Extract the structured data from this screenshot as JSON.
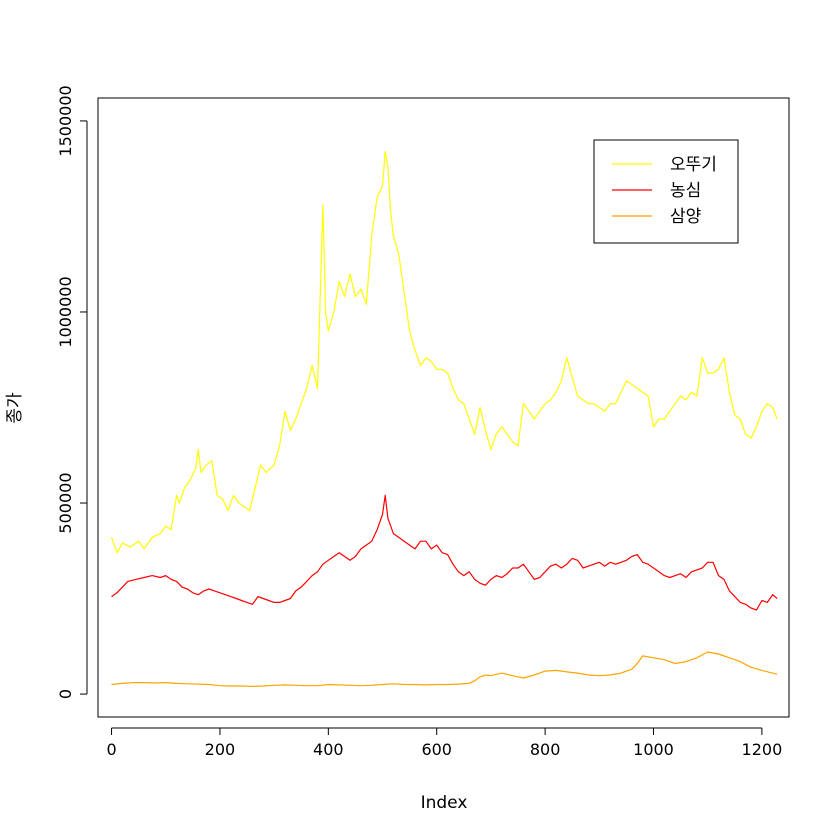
{
  "chart_data": {
    "type": "line",
    "title": "",
    "xlabel": "Index",
    "ylabel": "종가",
    "xlim": [
      -25,
      1250
    ],
    "ylim": [
      -60000,
      1560000
    ],
    "x_ticks": [
      0,
      200,
      400,
      600,
      800,
      1000,
      1200
    ],
    "x_tick_labels": [
      "0",
      "200",
      "400",
      "600",
      "800",
      "1000",
      "1200"
    ],
    "y_ticks": [
      0,
      500000,
      1000000,
      1500000
    ],
    "y_tick_labels": [
      "0",
      "500000",
      "1000000",
      "1500000"
    ],
    "grid": false,
    "legend_position": "top-right",
    "series": [
      {
        "name": "오뚜기",
        "color": "#ffff00",
        "x": [
          0,
          10,
          20,
          35,
          50,
          60,
          75,
          90,
          100,
          110,
          120,
          125,
          135,
          145,
          155,
          160,
          165,
          175,
          185,
          195,
          205,
          215,
          225,
          235,
          245,
          255,
          265,
          275,
          285,
          300,
          310,
          320,
          330,
          340,
          350,
          360,
          370,
          380,
          390,
          395,
          400,
          410,
          420,
          430,
          440,
          450,
          460,
          470,
          480,
          490,
          500,
          505,
          510,
          515,
          520,
          530,
          540,
          550,
          560,
          570,
          580,
          590,
          600,
          610,
          620,
          630,
          640,
          650,
          660,
          670,
          680,
          690,
          700,
          710,
          720,
          730,
          740,
          750,
          760,
          770,
          780,
          790,
          800,
          810,
          820,
          830,
          840,
          850,
          860,
          870,
          880,
          890,
          900,
          910,
          920,
          930,
          940,
          950,
          960,
          970,
          980,
          990,
          1000,
          1010,
          1020,
          1030,
          1040,
          1050,
          1060,
          1070,
          1080,
          1090,
          1100,
          1110,
          1120,
          1130,
          1140,
          1150,
          1160,
          1170,
          1180,
          1190,
          1200,
          1210,
          1220,
          1228
        ],
        "values": [
          410000,
          370000,
          395000,
          385000,
          400000,
          380000,
          410000,
          420000,
          440000,
          430000,
          520000,
          500000,
          540000,
          560000,
          590000,
          640000,
          580000,
          600000,
          610000,
          520000,
          510000,
          480000,
          520000,
          500000,
          490000,
          480000,
          540000,
          600000,
          580000,
          600000,
          650000,
          740000,
          690000,
          720000,
          760000,
          800000,
          860000,
          800000,
          1280000,
          1000000,
          950000,
          1000000,
          1080000,
          1040000,
          1100000,
          1040000,
          1060000,
          1020000,
          1200000,
          1300000,
          1330000,
          1420000,
          1380000,
          1260000,
          1200000,
          1150000,
          1050000,
          950000,
          900000,
          860000,
          880000,
          870000,
          850000,
          850000,
          840000,
          800000,
          770000,
          760000,
          720000,
          680000,
          750000,
          690000,
          640000,
          680000,
          700000,
          680000,
          660000,
          650000,
          760000,
          740000,
          720000,
          740000,
          760000,
          770000,
          790000,
          820000,
          880000,
          830000,
          780000,
          770000,
          760000,
          760000,
          750000,
          740000,
          760000,
          760000,
          790000,
          820000,
          810000,
          800000,
          790000,
          780000,
          700000,
          720000,
          720000,
          740000,
          760000,
          780000,
          770000,
          790000,
          780000,
          880000,
          840000,
          840000,
          850000,
          880000,
          790000,
          730000,
          720000,
          680000,
          670000,
          700000,
          740000,
          760000,
          750000,
          720000
        ]
      },
      {
        "name": "농심",
        "color": "#ff0000",
        "x": [
          0,
          10,
          20,
          30,
          45,
          60,
          75,
          90,
          100,
          110,
          120,
          130,
          140,
          150,
          160,
          170,
          180,
          190,
          200,
          210,
          220,
          230,
          240,
          250,
          260,
          270,
          280,
          290,
          300,
          310,
          320,
          330,
          340,
          350,
          360,
          370,
          380,
          390,
          400,
          410,
          420,
          430,
          440,
          450,
          460,
          470,
          480,
          490,
          500,
          505,
          510,
          520,
          530,
          540,
          550,
          560,
          570,
          580,
          590,
          600,
          610,
          620,
          630,
          640,
          650,
          660,
          670,
          680,
          690,
          700,
          710,
          720,
          730,
          740,
          750,
          760,
          770,
          780,
          790,
          800,
          810,
          820,
          830,
          840,
          850,
          860,
          870,
          880,
          890,
          900,
          910,
          920,
          930,
          940,
          950,
          960,
          970,
          980,
          990,
          1000,
          1010,
          1020,
          1030,
          1040,
          1050,
          1060,
          1070,
          1080,
          1090,
          1100,
          1110,
          1120,
          1130,
          1140,
          1150,
          1160,
          1170,
          1180,
          1190,
          1200,
          1210,
          1220,
          1228
        ],
        "values": [
          255000,
          265000,
          280000,
          295000,
          300000,
          305000,
          310000,
          305000,
          310000,
          300000,
          295000,
          280000,
          275000,
          265000,
          260000,
          270000,
          275000,
          270000,
          265000,
          260000,
          255000,
          250000,
          245000,
          240000,
          235000,
          255000,
          250000,
          245000,
          240000,
          240000,
          245000,
          250000,
          270000,
          280000,
          295000,
          310000,
          320000,
          340000,
          350000,
          360000,
          370000,
          360000,
          350000,
          360000,
          380000,
          390000,
          400000,
          430000,
          470000,
          520000,
          460000,
          420000,
          410000,
          400000,
          390000,
          380000,
          400000,
          400000,
          380000,
          390000,
          370000,
          365000,
          340000,
          320000,
          310000,
          320000,
          300000,
          290000,
          285000,
          300000,
          310000,
          305000,
          315000,
          330000,
          330000,
          340000,
          320000,
          300000,
          305000,
          320000,
          335000,
          340000,
          330000,
          340000,
          355000,
          350000,
          330000,
          335000,
          340000,
          345000,
          335000,
          345000,
          340000,
          345000,
          350000,
          360000,
          365000,
          345000,
          340000,
          330000,
          320000,
          310000,
          305000,
          310000,
          315000,
          305000,
          320000,
          325000,
          330000,
          345000,
          345000,
          310000,
          300000,
          270000,
          255000,
          240000,
          235000,
          225000,
          220000,
          245000,
          240000,
          260000,
          250000
        ]
      },
      {
        "name": "삼양",
        "color": "#ffa500",
        "x": [
          0,
          20,
          40,
          60,
          80,
          100,
          120,
          140,
          160,
          180,
          200,
          220,
          240,
          260,
          280,
          300,
          320,
          340,
          360,
          380,
          400,
          420,
          440,
          460,
          480,
          500,
          520,
          540,
          560,
          580,
          600,
          620,
          640,
          660,
          670,
          680,
          690,
          700,
          720,
          740,
          760,
          780,
          800,
          820,
          840,
          860,
          880,
          900,
          920,
          940,
          960,
          970,
          980,
          1000,
          1020,
          1040,
          1060,
          1080,
          1100,
          1120,
          1140,
          1160,
          1180,
          1200,
          1228
        ],
        "values": [
          25000,
          28000,
          30000,
          30000,
          29000,
          30000,
          28000,
          27000,
          26000,
          25000,
          22000,
          21000,
          21000,
          20000,
          21000,
          23000,
          24000,
          23000,
          22000,
          22000,
          25000,
          24000,
          23000,
          22000,
          23000,
          25000,
          27000,
          25000,
          25000,
          24000,
          25000,
          25000,
          26000,
          28000,
          35000,
          45000,
          50000,
          48000,
          55000,
          48000,
          42000,
          50000,
          60000,
          62000,
          58000,
          55000,
          50000,
          48000,
          50000,
          55000,
          65000,
          80000,
          100000,
          95000,
          90000,
          80000,
          85000,
          95000,
          110000,
          105000,
          95000,
          85000,
          70000,
          62000,
          52000
        ]
      }
    ]
  }
}
